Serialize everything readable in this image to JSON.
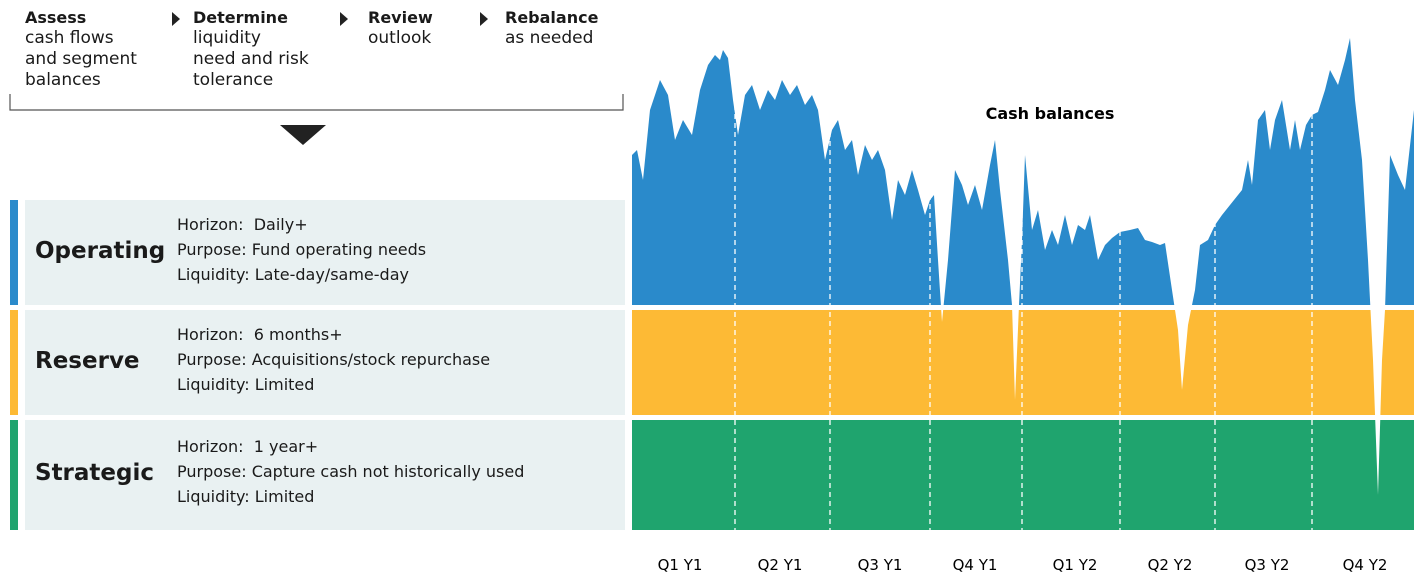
{
  "steps": [
    {
      "title": "Assess",
      "lines": [
        "cash flows",
        "and segment",
        "balances"
      ]
    },
    {
      "title": "Determine",
      "lines": [
        "liquidity",
        "need and risk",
        "tolerance"
      ]
    },
    {
      "title": "Review",
      "lines": [
        "outlook"
      ]
    },
    {
      "title": "Rebalance",
      "lines": [
        "as needed"
      ]
    }
  ],
  "segments": [
    {
      "name": "Operating",
      "color": "#2a8acb",
      "details": [
        "Horizon:  Daily+",
        "Purpose: Fund operating needs",
        "Liquidity: Late-day/same-day"
      ]
    },
    {
      "name": "Reserve",
      "color": "#fdba35",
      "details": [
        "Horizon:  6 months+",
        "Purpose: Acquisitions/stock repurchase",
        "Liquidity: Limited"
      ]
    },
    {
      "name": "Strategic",
      "color": "#1fa46e",
      "details": [
        "Horizon:  1 year+",
        "Purpose: Capture cash not historically used",
        "Liquidity: Limited"
      ]
    }
  ],
  "chart": {
    "title": "Cash balances",
    "periods": [
      "Q1 Y1",
      "Q2 Y1",
      "Q3 Y1",
      "Q4 Y1",
      "Q1 Y2",
      "Q2 Y2",
      "Q3 Y2",
      "Q4 Y2"
    ]
  }
}
